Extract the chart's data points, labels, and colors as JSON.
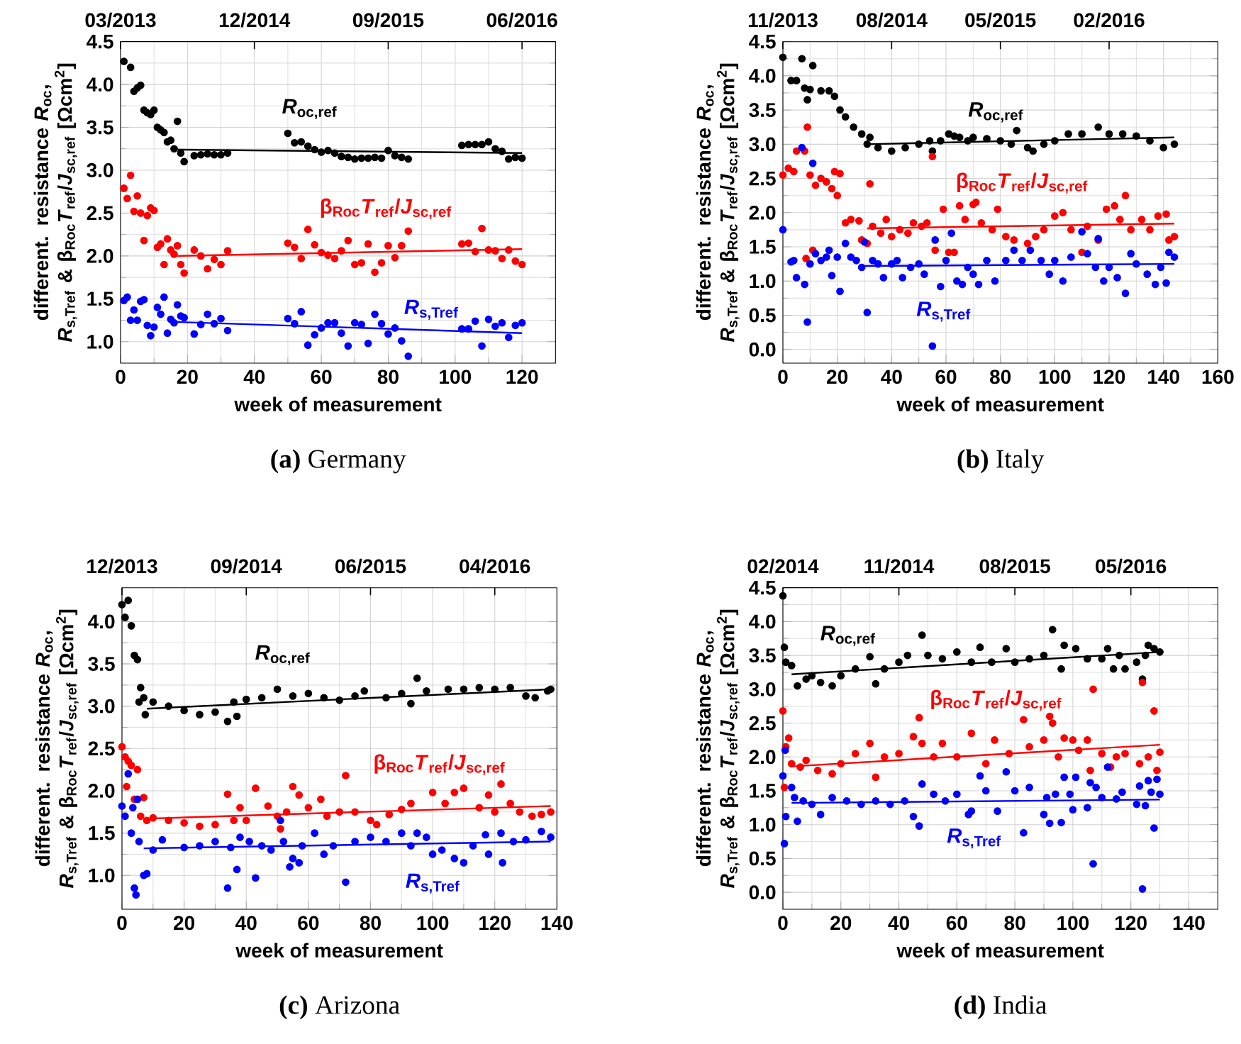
{
  "chart_data": [
    {
      "type": "scatter",
      "title": "**(a)** Germany",
      "xlabel": "week of measurement",
      "ylabel": "different. resistance *R*$_{oc}$, *R*$_{s,Tref}$ & β$_{Roc}$*T*$_{ref}$/*J*$_{sc,ref}$ [Ωcm$^{2}$]",
      "xlim": [
        0,
        130
      ],
      "ylim": [
        0.75,
        4.5
      ],
      "xticks": [
        0,
        20,
        40,
        60,
        80,
        100,
        120
      ],
      "yticks": [
        {
          "value": 1,
          "label": "1.0"
        },
        {
          "value": 1.5,
          "label": "1.5"
        },
        {
          "value": 2,
          "label": "2.0"
        },
        {
          "value": 2.5,
          "label": "2.5"
        },
        {
          "value": 3,
          "label": "3.0"
        },
        {
          "value": 3.5,
          "label": "3.5"
        },
        {
          "value": 4,
          "label": "4.0"
        },
        {
          "value": 4.5,
          "label": "4.5"
        }
      ],
      "annotations": [
        "03/2013",
        "12/2014",
        "09/2015",
        "06/2016"
      ],
      "grid": true,
      "series": [
        {
          "name": "*R*$_{oc,ref}$",
          "marker": "circle",
          "color": "#000000",
          "x": [
            1,
            3,
            4,
            5,
            6,
            7,
            8,
            9,
            10,
            11,
            12,
            13,
            14,
            15,
            16,
            17,
            18,
            19,
            22,
            24,
            26,
            28,
            30,
            32,
            50,
            52,
            54,
            56,
            58,
            60,
            62,
            64,
            66,
            68,
            70,
            72,
            74,
            76,
            78,
            80,
            82,
            84,
            86,
            102,
            104,
            106,
            108,
            110,
            112,
            114,
            116,
            118,
            120
          ],
          "values": [
            4.27,
            4.2,
            3.92,
            3.96,
            3.99,
            3.7,
            3.67,
            3.65,
            3.7,
            3.5,
            3.47,
            3.44,
            3.33,
            3.35,
            3.25,
            3.57,
            3.2,
            3.1,
            3.17,
            3.18,
            3.19,
            3.18,
            3.18,
            3.2,
            3.43,
            3.32,
            3.33,
            3.28,
            3.24,
            3.21,
            3.23,
            3.2,
            3.16,
            3.15,
            3.13,
            3.14,
            3.14,
            3.15,
            3.14,
            3.23,
            3.17,
            3.15,
            3.13,
            3.29,
            3.3,
            3.3,
            3.3,
            3.33,
            3.25,
            3.22,
            3.13,
            3.15,
            3.14
          ]
        },
        {
          "name": "β$_{Roc}$*T*$_{ref}$/*J*$_{sc,ref}$",
          "marker": "circle",
          "color": "#ff0000",
          "x": [
            1,
            2,
            3,
            4,
            5,
            6,
            7,
            8,
            9,
            10,
            11,
            12,
            13,
            14,
            15,
            16,
            17,
            18,
            19,
            22,
            24,
            26,
            28,
            30,
            32,
            50,
            52,
            54,
            56,
            58,
            60,
            62,
            64,
            66,
            68,
            70,
            72,
            74,
            76,
            78,
            80,
            82,
            84,
            86,
            102,
            104,
            106,
            108,
            110,
            112,
            114,
            116,
            118,
            120
          ],
          "values": [
            2.79,
            2.67,
            2.94,
            2.52,
            2.7,
            2.5,
            2.18,
            2.47,
            2.56,
            2.53,
            2.1,
            2.14,
            1.9,
            2.2,
            2.07,
            2.02,
            2.12,
            1.9,
            1.8,
            2.07,
            2.0,
            1.85,
            1.96,
            1.9,
            2.06,
            2.15,
            2.1,
            1.97,
            2.31,
            2.13,
            2.04,
            2.01,
            1.97,
            2.06,
            2.18,
            1.9,
            1.92,
            2.14,
            1.81,
            1.92,
            2.12,
            1.98,
            2.12,
            2.29,
            2.14,
            2.15,
            2.05,
            2.32,
            2.07,
            2.06,
            1.97,
            2.07,
            1.94,
            1.9
          ]
        },
        {
          "name": "*R*$_{s,Tref}$",
          "marker": "circle",
          "color": "#0000ff",
          "x": [
            1,
            2,
            3,
            4,
            5,
            6,
            7,
            8,
            9,
            10,
            11,
            12,
            13,
            14,
            15,
            16,
            17,
            18,
            19,
            22,
            24,
            26,
            28,
            30,
            32,
            50,
            52,
            54,
            56,
            58,
            60,
            62,
            64,
            66,
            68,
            70,
            72,
            74,
            76,
            78,
            80,
            82,
            84,
            86,
            102,
            104,
            106,
            108,
            110,
            112,
            114,
            116,
            118,
            120
          ],
          "values": [
            1.48,
            1.52,
            1.25,
            1.37,
            1.25,
            1.47,
            1.49,
            1.19,
            1.07,
            1.17,
            1.4,
            1.32,
            1.52,
            1.1,
            1.26,
            1.22,
            1.43,
            1.3,
            1.28,
            1.09,
            1.2,
            1.32,
            1.21,
            1.27,
            1.13,
            1.27,
            1.21,
            1.35,
            0.96,
            1.08,
            1.16,
            1.22,
            1.22,
            1.1,
            0.95,
            1.22,
            1.2,
            0.98,
            1.32,
            1.21,
            1.09,
            1.16,
            1.01,
            0.83,
            1.15,
            1.15,
            1.24,
            0.95,
            1.26,
            1.18,
            1.22,
            1.05,
            1.19,
            1.22
          ]
        },
        {
          "type": "line",
          "marker": "none",
          "color": "#000000",
          "x": [
            17,
            120
          ],
          "values": [
            3.24,
            3.2
          ]
        },
        {
          "type": "line",
          "marker": "none",
          "color": "#ff0000",
          "x": [
            17,
            120
          ],
          "values": [
            2.0,
            2.08
          ]
        },
        {
          "type": "line",
          "marker": "none",
          "color": "#0000ff",
          "x": [
            17,
            120
          ],
          "values": [
            1.23,
            1.1
          ]
        }
      ]
    },
    {
      "type": "scatter",
      "title": "**(b)** Italy",
      "xlabel": "week of measurement",
      "ylabel": "different. resistance *R*$_{oc}$, *R*$_{s,Tref}$ & β$_{Roc}$*T*$_{ref}$/*J*$_{sc,ref}$ [Ωcm$^{2}$]",
      "xlim": [
        0,
        160
      ],
      "ylim": [
        -0.2,
        4.5
      ],
      "xticks": [
        0,
        20,
        40,
        60,
        80,
        100,
        120,
        140,
        160
      ],
      "yticks": [
        {
          "value": 0,
          "label": "0.0"
        },
        {
          "value": 0.5,
          "label": "0.5"
        },
        {
          "value": 1,
          "label": "1.0"
        },
        {
          "value": 1.5,
          "label": "1.5"
        },
        {
          "value": 2,
          "label": "2.0"
        },
        {
          "value": 2.5,
          "label": "2.5"
        },
        {
          "value": 3,
          "label": "3.0"
        },
        {
          "value": 3.5,
          "label": "3.5"
        },
        {
          "value": 4,
          "label": "4.0"
        },
        {
          "value": 4.5,
          "label": "4.5"
        }
      ],
      "annotations": [
        "11/2013",
        "08/2014",
        "05/2015",
        "02/2016"
      ],
      "grid": true,
      "series": [
        {
          "name": "*R*$_{oc,ref}$",
          "marker": "circle",
          "color": "#000000",
          "x": [
            0,
            3,
            5,
            7,
            8,
            9,
            10,
            11,
            14,
            17,
            19,
            21,
            23,
            26,
            29,
            31,
            32,
            35,
            40,
            45,
            50,
            54,
            55,
            58,
            61,
            63,
            65,
            68,
            70,
            75,
            80,
            84,
            86,
            90,
            92,
            96,
            100,
            105,
            110,
            116,
            120,
            125,
            130,
            135,
            140,
            144
          ],
          "values": [
            4.27,
            3.93,
            3.93,
            4.25,
            3.82,
            3.65,
            3.8,
            4.15,
            3.78,
            3.78,
            3.7,
            3.5,
            3.4,
            3.25,
            3.15,
            3.0,
            3.1,
            2.95,
            2.9,
            2.95,
            3.0,
            3.05,
            2.9,
            3.05,
            3.15,
            3.12,
            3.1,
            3.05,
            3.1,
            3.08,
            3.05,
            3.0,
            3.2,
            2.95,
            2.9,
            3.0,
            3.05,
            3.15,
            3.15,
            3.25,
            3.15,
            3.15,
            3.12,
            3.05,
            2.95,
            3.0
          ]
        },
        {
          "name": "β$_{Roc}$*T*$_{ref}$/*J*$_{sc,ref}$",
          "marker": "circle",
          "color": "#ff0000",
          "x": [
            0,
            2,
            4,
            5,
            8,
            8.5,
            9,
            10,
            11,
            12,
            14,
            16,
            18,
            19,
            20,
            21,
            23,
            25,
            28,
            29,
            31,
            32,
            33,
            36,
            38,
            40,
            43,
            46,
            48,
            51,
            53,
            55,
            56,
            59,
            61,
            63,
            65,
            67,
            70,
            71,
            73,
            77,
            79,
            82,
            85,
            90,
            93,
            96,
            100,
            103,
            106,
            110,
            112,
            116,
            119,
            122,
            124,
            126,
            128,
            132,
            135,
            138,
            141,
            142,
            144
          ],
          "values": [
            2.55,
            2.65,
            2.6,
            2.9,
            2.9,
            1.33,
            3.25,
            2.55,
            1.45,
            2.4,
            2.5,
            2.45,
            2.35,
            2.6,
            2.25,
            2.57,
            1.85,
            1.9,
            1.88,
            1.6,
            1.55,
            2.42,
            1.8,
            1.7,
            1.9,
            1.65,
            1.75,
            1.7,
            1.85,
            1.8,
            1.85,
            2.82,
            1.45,
            2.05,
            1.42,
            1.42,
            2.1,
            1.9,
            2.12,
            2.15,
            1.85,
            1.75,
            2.05,
            1.65,
            1.6,
            1.55,
            1.65,
            1.75,
            1.95,
            2.0,
            1.75,
            1.42,
            1.8,
            1.6,
            2.05,
            2.1,
            1.9,
            2.25,
            1.75,
            1.9,
            1.75,
            1.95,
            1.98,
            1.6,
            1.65
          ]
        },
        {
          "name": "*R*$_{s,Tref}$",
          "marker": "circle",
          "color": "#0000ff",
          "x": [
            0,
            3,
            4,
            5,
            7,
            8,
            9,
            10,
            11,
            12,
            14,
            16,
            17,
            18,
            20,
            21,
            23,
            25,
            27,
            29,
            30,
            31,
            33,
            35,
            37,
            40,
            42,
            44,
            47,
            50,
            52,
            55,
            56,
            58,
            60,
            62,
            64,
            66,
            68,
            70,
            72,
            75,
            78,
            82,
            85,
            88,
            91,
            95,
            98,
            100,
            103,
            106,
            110,
            112,
            115,
            116,
            118,
            120,
            123,
            126,
            128,
            130,
            134,
            137,
            139,
            141,
            142,
            144
          ],
          "values": [
            1.75,
            1.28,
            1.3,
            1.05,
            2.95,
            0.95,
            0.4,
            1.25,
            2.72,
            1.4,
            1.3,
            1.35,
            1.45,
            1.08,
            1.35,
            0.85,
            1.55,
            1.35,
            1.3,
            1.2,
            1.57,
            0.54,
            1.3,
            1.25,
            1.05,
            1.25,
            1.3,
            1.05,
            1.2,
            1.25,
            1.1,
            0.05,
            1.6,
            0.92,
            1.3,
            1.7,
            1.0,
            0.95,
            1.2,
            1.1,
            0.95,
            1.3,
            1.0,
            1.3,
            1.45,
            1.3,
            1.45,
            1.3,
            1.1,
            1.3,
            1.0,
            1.35,
            1.72,
            1.4,
            1.2,
            1.62,
            1.0,
            1.2,
            1.05,
            0.82,
            1.4,
            1.25,
            1.1,
            0.95,
            1.2,
            0.97,
            1.42,
            1.35
          ]
        },
        {
          "type": "line",
          "marker": "none",
          "color": "#000000",
          "x": [
            31,
            144
          ],
          "values": [
            3.0,
            3.1
          ]
        },
        {
          "type": "line",
          "marker": "none",
          "color": "#ff0000",
          "x": [
            31,
            144
          ],
          "values": [
            1.77,
            1.84
          ]
        },
        {
          "type": "line",
          "marker": "none",
          "color": "#0000ff",
          "x": [
            30,
            144
          ],
          "values": [
            1.22,
            1.25
          ]
        }
      ]
    },
    {
      "type": "scatter",
      "title": "**(c)** Arizona",
      "xlabel": "week of measurement",
      "ylabel": "different. resistance *R*$_{oc}$, *R*$_{s,Tref}$ & β$_{Roc}$*T*$_{ref}$/*J*$_{sc,ref}$ [Ωcm$^{2}$]",
      "xlim": [
        0,
        140
      ],
      "ylim": [
        0.6,
        4.4
      ],
      "xticks": [
        0,
        20,
        40,
        60,
        80,
        100,
        120,
        140
      ],
      "yticks": [
        {
          "value": 1,
          "label": "1.0"
        },
        {
          "value": 1.5,
          "label": "1.5"
        },
        {
          "value": 2,
          "label": "2.0"
        },
        {
          "value": 2.5,
          "label": "2.5"
        },
        {
          "value": 3,
          "label": "3.0"
        },
        {
          "value": 3.5,
          "label": "3.5"
        },
        {
          "value": 4,
          "label": "4.0"
        }
      ],
      "annotations": [
        "12/2013",
        "09/2014",
        "06/2015",
        "04/2016"
      ],
      "grid": true,
      "series": [
        {
          "name": "*R*$_{oc,ref}$",
          "marker": "circle",
          "color": "#000000",
          "x": [
            0,
            1,
            2,
            3,
            4,
            5,
            5.5,
            6,
            7,
            7.5,
            10,
            15,
            20,
            25,
            30,
            34,
            36,
            37,
            40,
            45,
            50,
            55,
            60,
            65,
            70,
            75,
            78,
            85,
            90,
            93,
            95,
            98,
            105,
            110,
            115,
            120,
            125,
            130,
            133,
            137,
            138
          ],
          "values": [
            4.2,
            4.05,
            4.25,
            3.95,
            3.6,
            3.55,
            3.05,
            3.22,
            3.1,
            2.9,
            3.05,
            3.0,
            2.95,
            2.9,
            2.93,
            2.82,
            3.05,
            2.88,
            3.08,
            3.1,
            3.2,
            3.12,
            3.15,
            3.1,
            3.07,
            3.12,
            3.18,
            3.1,
            3.15,
            3.03,
            3.33,
            3.18,
            3.2,
            3.2,
            3.22,
            3.2,
            3.22,
            3.12,
            3.1,
            3.18,
            3.2
          ]
        },
        {
          "name": "β$_{Roc}$*T*$_{ref}$/*J*$_{sc,ref}$",
          "marker": "circle",
          "color": "#ff0000",
          "x": [
            0,
            1,
            1.5,
            2,
            3,
            4,
            5,
            6,
            7,
            8,
            10,
            15,
            20,
            25,
            30,
            34,
            36,
            38,
            40,
            43,
            47,
            50,
            51,
            53,
            55,
            57,
            60,
            64,
            66,
            70,
            72,
            75,
            80,
            82,
            86,
            90,
            93,
            100,
            104,
            107,
            110,
            115,
            118,
            120,
            122,
            125,
            128,
            132,
            135,
            138
          ],
          "values": [
            2.52,
            2.4,
            2.05,
            2.35,
            2.3,
            1.9,
            2.25,
            1.7,
            1.92,
            1.65,
            1.68,
            1.65,
            1.62,
            1.58,
            1.6,
            1.96,
            1.65,
            1.8,
            1.65,
            2.03,
            1.82,
            1.7,
            1.55,
            1.75,
            2.05,
            1.95,
            1.8,
            1.9,
            1.7,
            1.75,
            2.18,
            1.75,
            1.65,
            1.6,
            1.72,
            1.78,
            1.85,
            1.98,
            1.85,
            1.98,
            2.03,
            1.8,
            1.95,
            1.75,
            2.08,
            1.85,
            1.75,
            1.7,
            1.72,
            1.75
          ]
        },
        {
          "name": "*R*$_{s,Tref}$",
          "marker": "circle",
          "color": "#0000ff",
          "x": [
            0,
            1,
            2,
            3,
            3.5,
            4,
            4.5,
            5,
            5.5,
            7,
            8,
            10,
            13,
            20,
            25,
            30,
            34,
            35,
            37,
            38,
            41,
            43,
            45,
            48,
            51,
            52,
            54,
            55,
            57,
            58,
            62,
            65,
            68,
            72,
            75,
            80,
            85,
            90,
            93,
            95,
            98,
            100,
            103,
            107,
            110,
            113,
            117,
            118,
            122,
            122.5,
            126,
            130,
            135,
            138
          ],
          "values": [
            1.82,
            1.7,
            2.2,
            1.5,
            1.8,
            0.85,
            0.77,
            1.9,
            1.4,
            1.0,
            1.02,
            1.3,
            1.42,
            1.33,
            1.35,
            1.4,
            0.85,
            1.33,
            1.07,
            1.45,
            1.4,
            0.97,
            1.35,
            1.3,
            1.65,
            1.4,
            1.1,
            1.2,
            1.15,
            1.35,
            1.5,
            1.25,
            1.35,
            0.92,
            1.4,
            1.45,
            1.4,
            1.5,
            1.35,
            1.5,
            1.45,
            1.25,
            1.3,
            1.2,
            1.15,
            1.35,
            1.48,
            1.25,
            1.5,
            1.15,
            1.4,
            1.42,
            1.52,
            1.45
          ]
        },
        {
          "type": "line",
          "marker": "none",
          "color": "#000000",
          "x": [
            8,
            138
          ],
          "values": [
            2.97,
            3.2
          ]
        },
        {
          "type": "line",
          "marker": "none",
          "color": "#ff0000",
          "x": [
            7,
            138
          ],
          "values": [
            1.67,
            1.82
          ]
        },
        {
          "type": "line",
          "marker": "none",
          "color": "#0000ff",
          "x": [
            7,
            138
          ],
          "values": [
            1.32,
            1.4
          ]
        }
      ]
    },
    {
      "type": "scatter",
      "title": "**(d)** India",
      "xlabel": "week of measurement",
      "ylabel": "different. resistance *R*$_{oc}$, *R*$_{s,Tref}$ & β$_{Roc}$*T*$_{ref}$/*J*$_{sc,ref}$ [Ωcm$^{2}$]",
      "xlim": [
        0,
        150
      ],
      "ylim": [
        -0.25,
        4.5
      ],
      "xticks": [
        0,
        20,
        40,
        60,
        80,
        100,
        120,
        140
      ],
      "yticks": [
        {
          "value": 0,
          "label": "0.0"
        },
        {
          "value": 0.5,
          "label": "0.5"
        },
        {
          "value": 1,
          "label": "1.0"
        },
        {
          "value": 1.5,
          "label": "1.5"
        },
        {
          "value": 2,
          "label": "2.0"
        },
        {
          "value": 2.5,
          "label": "2.5"
        },
        {
          "value": 3,
          "label": "3.0"
        },
        {
          "value": 3.5,
          "label": "3.5"
        },
        {
          "value": 4,
          "label": "4.0"
        },
        {
          "value": 4.5,
          "label": "4.5"
        }
      ],
      "annotations": [
        "02/2014",
        "11/2014",
        "08/2015",
        "05/2016"
      ],
      "grid": true,
      "series": [
        {
          "name": "*R*$_{oc,ref}$",
          "marker": "circle",
          "color": "#000000",
          "x": [
            0,
            0.5,
            1,
            3,
            5,
            8,
            10,
            13,
            17,
            20,
            25,
            30,
            32,
            35,
            40,
            43,
            48,
            50,
            55,
            60,
            65,
            68,
            72,
            77,
            80,
            85,
            90,
            93,
            96,
            97,
            101,
            105,
            110,
            112,
            114,
            116,
            118,
            122,
            124,
            125,
            126,
            128,
            130
          ],
          "values": [
            4.38,
            3.62,
            3.4,
            3.35,
            3.05,
            3.15,
            3.2,
            3.1,
            3.05,
            3.2,
            3.3,
            3.48,
            3.08,
            3.3,
            3.4,
            3.5,
            3.8,
            3.5,
            3.45,
            3.55,
            3.4,
            3.62,
            3.4,
            3.6,
            3.4,
            3.45,
            3.5,
            3.88,
            3.3,
            3.65,
            3.6,
            3.45,
            3.45,
            3.6,
            3.3,
            3.5,
            3.3,
            3.4,
            3.15,
            3.5,
            3.65,
            3.6,
            3.55
          ]
        },
        {
          "name": "β$_{Roc}$*T*$_{ref}$/*J*$_{sc,ref}$",
          "marker": "circle",
          "color": "#ff0000",
          "x": [
            0,
            0.5,
            1,
            2,
            3,
            6,
            8,
            12,
            17,
            20,
            25,
            30,
            32,
            35,
            40,
            45,
            47,
            48,
            52,
            55,
            60,
            65,
            70,
            73,
            78,
            83,
            85,
            90,
            92,
            93,
            95,
            97,
            100,
            102,
            105,
            106,
            107,
            110,
            113,
            115,
            118,
            123,
            124,
            126,
            128,
            129,
            130
          ],
          "values": [
            2.68,
            1.55,
            2.15,
            2.28,
            1.9,
            1.85,
            1.95,
            1.8,
            1.75,
            1.9,
            2.05,
            2.2,
            1.7,
            2.0,
            2.05,
            2.3,
            2.58,
            2.2,
            2.0,
            2.2,
            2.0,
            2.35,
            1.9,
            2.25,
            2.05,
            2.55,
            2.15,
            2.25,
            2.6,
            2.5,
            2.0,
            2.28,
            2.25,
            2.1,
            2.25,
            1.8,
            3.0,
            2.05,
            1.85,
            2.0,
            2.05,
            1.9,
            3.1,
            2.0,
            2.68,
            1.8,
            2.07
          ]
        },
        {
          "name": "*R*$_{s,Tref}$",
          "marker": "circle",
          "color": "#0000ff",
          "x": [
            0,
            0.5,
            0.8,
            1,
            3,
            4,
            5,
            7,
            10,
            13,
            17,
            22,
            27,
            32,
            37,
            42,
            45,
            47,
            48,
            52,
            56,
            60,
            64,
            65,
            68,
            70,
            74,
            77,
            80,
            83,
            85,
            90,
            91,
            92,
            94,
            96,
            97,
            99,
            100,
            101,
            105,
            106,
            107,
            108,
            110,
            112,
            115,
            117,
            122,
            123,
            124,
            125,
            126,
            127,
            128,
            129,
            130
          ],
          "values": [
            1.72,
            0.72,
            2.1,
            1.12,
            1.55,
            1.4,
            1.05,
            1.35,
            1.3,
            1.15,
            1.4,
            1.35,
            1.3,
            1.35,
            1.3,
            1.35,
            1.12,
            0.98,
            1.6,
            1.45,
            1.35,
            1.45,
            1.15,
            1.2,
            1.72,
            1.5,
            1.2,
            1.78,
            1.5,
            0.88,
            1.55,
            1.15,
            1.4,
            1.02,
            1.45,
            1.03,
            1.7,
            1.45,
            1.22,
            1.7,
            1.25,
            1.62,
            0.42,
            1.55,
            1.4,
            1.85,
            1.38,
            1.48,
            1.3,
            1.57,
            0.05,
            1.28,
            1.65,
            1.48,
            0.95,
            1.67,
            1.45
          ]
        },
        {
          "type": "line",
          "marker": "none",
          "color": "#000000",
          "x": [
            3,
            130
          ],
          "values": [
            3.22,
            3.55
          ]
        },
        {
          "type": "line",
          "marker": "none",
          "color": "#ff0000",
          "x": [
            3,
            130
          ],
          "values": [
            1.86,
            2.18
          ]
        },
        {
          "type": "line",
          "marker": "none",
          "color": "#0000ff",
          "x": [
            3,
            130
          ],
          "values": [
            1.32,
            1.37
          ]
        }
      ]
    }
  ]
}
